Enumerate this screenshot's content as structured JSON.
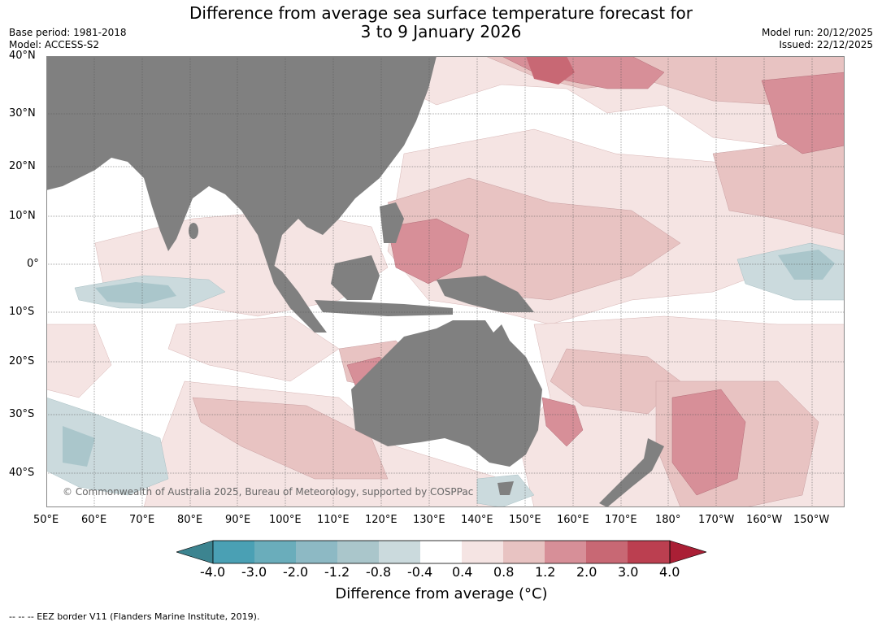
{
  "title": {
    "line1": "Difference from average sea surface temperature forecast for",
    "line2": "3 to 9 January 2026"
  },
  "meta": {
    "base_period": "Base period: 1981-2018",
    "model": "Model: ACCESS-S2",
    "model_run": "Model run: 20/12/2025",
    "issued": "Issued: 22/12/2025"
  },
  "copyright": "© Commonwealth of Australia 2025, Bureau of Meteorology, supported by COSPPac",
  "lat_labels": [
    "40°N",
    "30°N",
    "20°N",
    "10°N",
    "0°",
    "10°S",
    "20°S",
    "30°S",
    "40°S"
  ],
  "lon_labels": [
    "50°E",
    "60°E",
    "70°E",
    "80°E",
    "90°E",
    "100°E",
    "110°E",
    "120°E",
    "130°E",
    "140°E",
    "150°E",
    "160°E",
    "170°E",
    "180°",
    "170°W",
    "160°W",
    "150°W"
  ],
  "colorbar": {
    "ticks": [
      "-4.0",
      "-3.0",
      "-2.0",
      "-1.2",
      "-0.8",
      "-0.4",
      "0.4",
      "0.8",
      "1.2",
      "2.0",
      "3.0",
      "4.0"
    ],
    "colors": [
      "#4aa0b4",
      "#6aadbb",
      "#8db9c4",
      "#aac6cb",
      "#cbdadd",
      "#ffffff",
      "#f5e4e3",
      "#e8c3c2",
      "#d78f98",
      "#c86874",
      "#bb3f50"
    ],
    "under_color": "#3c8490",
    "over_color": "#aa1f35",
    "label": "Difference from average (°C)"
  },
  "land_color": "#808080",
  "footer": "--  --  -- EEZ border V11 (Flanders Marine Institute, 2019)."
}
